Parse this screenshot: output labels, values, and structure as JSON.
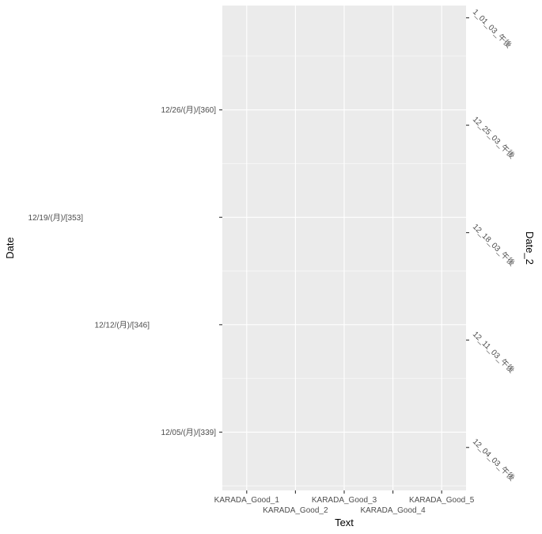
{
  "chart_data": {
    "type": "scatter",
    "xlabel": "Text",
    "ylabel": "Date",
    "ylabel_secondary": "Date_2",
    "categories": [
      "KARADA_Good_1",
      "KARADA_Good_2",
      "KARADA_Good_3",
      "KARADA_Good_4",
      "KARADA_Good_5"
    ],
    "y_left_ticks": [
      {
        "value": 339,
        "label": "12/05/(月)/[339]"
      },
      {
        "value": 346,
        "label": "12/12/(月)/[346]"
      },
      {
        "value": 353,
        "label": "12/19/(月)/[353]"
      },
      {
        "value": 360,
        "label": "12/26/(月)/[360]"
      }
    ],
    "y_right_ticks": [
      {
        "value": 338,
        "label": "12_04_03_午後"
      },
      {
        "value": 345,
        "label": "12_11_03_午後"
      },
      {
        "value": 352,
        "label": "12_18_03_午後"
      },
      {
        "value": 359,
        "label": "12_25_03_午後"
      },
      {
        "value": 366,
        "label": "1_01_03_午後"
      }
    ],
    "ylim": [
      335.2,
      366.8
    ],
    "points": [],
    "grid": true,
    "colors": {
      "panel": "#ebebeb",
      "grid_major": "#ffffff",
      "tick": "#333333",
      "tick_label": "#4d4d4d",
      "title": "#000000"
    }
  }
}
